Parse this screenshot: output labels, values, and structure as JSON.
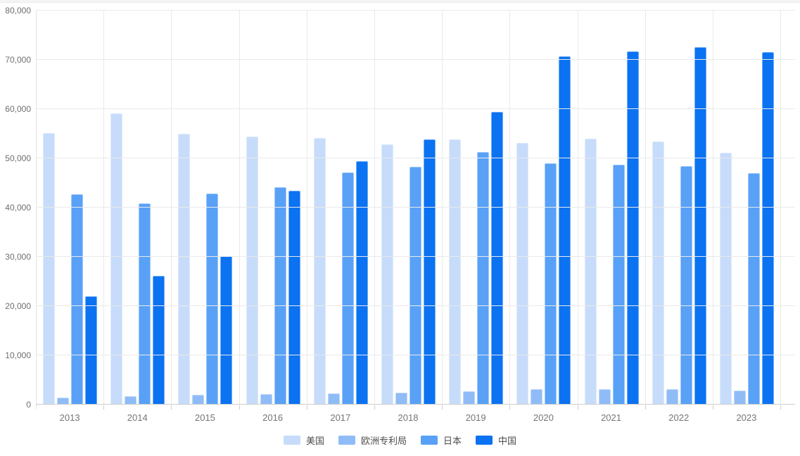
{
  "chart_data": {
    "type": "bar",
    "categories": [
      "2013",
      "2014",
      "2015",
      "2016",
      "2017",
      "2018",
      "2019",
      "2020",
      "2021",
      "2022",
      "2023"
    ],
    "series": [
      {
        "key": "us",
        "name": "美国",
        "color": "#C7DCFA",
        "values": [
          55200,
          59100,
          55000,
          54400,
          54100,
          52800,
          53800,
          53100,
          54000,
          53500,
          51100
        ]
      },
      {
        "key": "epo",
        "name": "欧洲专利局",
        "color": "#8FBCF6",
        "values": [
          1400,
          1700,
          2000,
          2100,
          2300,
          2400,
          2700,
          3200,
          3100,
          3100,
          2800
        ]
      },
      {
        "key": "jp",
        "name": "日本",
        "color": "#58A1F7",
        "values": [
          42700,
          40900,
          42800,
          44200,
          47100,
          48300,
          51300,
          49000,
          48700,
          48400,
          47000
        ]
      },
      {
        "key": "cn",
        "name": "中国",
        "color": "#0B72F2",
        "values": [
          22000,
          26100,
          30200,
          43400,
          49400,
          53800,
          59400,
          70700,
          71700,
          72600,
          71600
        ]
      }
    ],
    "ylim": [
      0,
      80000
    ],
    "y_tick_step": 10000,
    "y_tick_labels": [
      "0",
      "10,000",
      "20,000",
      "30,000",
      "40,000",
      "50,000",
      "60,000",
      "70,000",
      "80,000"
    ],
    "grid": true,
    "legend_position": "bottom",
    "colors": {
      "gridline": "#e9e9e9",
      "axis_line": "#cccccc",
      "y_label_text": "#6f6f6f",
      "x_label_text": "#757575",
      "legend_text": "#4d4d4d"
    }
  }
}
